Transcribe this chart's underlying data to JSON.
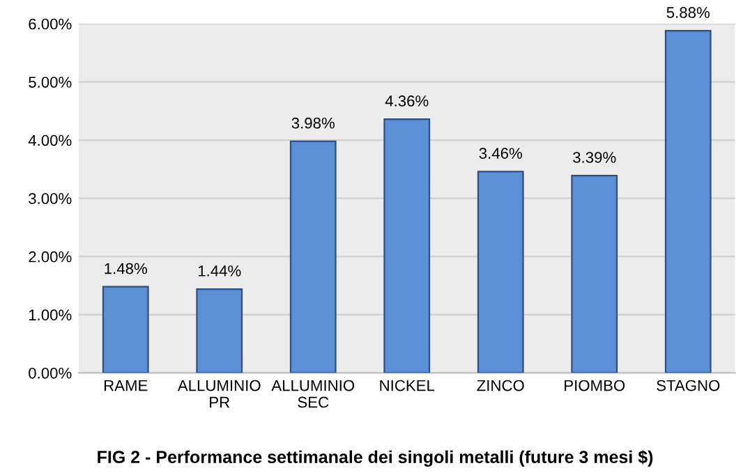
{
  "chart_data": {
    "type": "bar",
    "title": "FIG 2 - Performance settimanale dei singoli metalli (future 3 mesi $)",
    "categories": [
      "RAME",
      "ALLUMINIO PR",
      "ALLUMINIO SEC",
      "NICKEL",
      "ZINCO",
      "PIOMBO",
      "STAGNO"
    ],
    "values": [
      1.48,
      1.44,
      3.98,
      4.36,
      3.46,
      3.39,
      5.88
    ],
    "value_labels": [
      "1.48%",
      "1.44%",
      "3.98%",
      "4.36%",
      "3.46%",
      "3.39%",
      "5.88%"
    ],
    "color": "#5b8fd6",
    "ylim": [
      0,
      6
    ],
    "yticks": [
      {
        "value": 0,
        "label": "0.00%"
      },
      {
        "value": 1,
        "label": "1.00%"
      },
      {
        "value": 2,
        "label": "2.00%"
      },
      {
        "value": 3,
        "label": "3.00%"
      },
      {
        "value": 4,
        "label": "4.00%"
      },
      {
        "value": 5,
        "label": "5.00%"
      },
      {
        "value": 6,
        "label": "6.00%"
      }
    ],
    "grid": "y"
  }
}
